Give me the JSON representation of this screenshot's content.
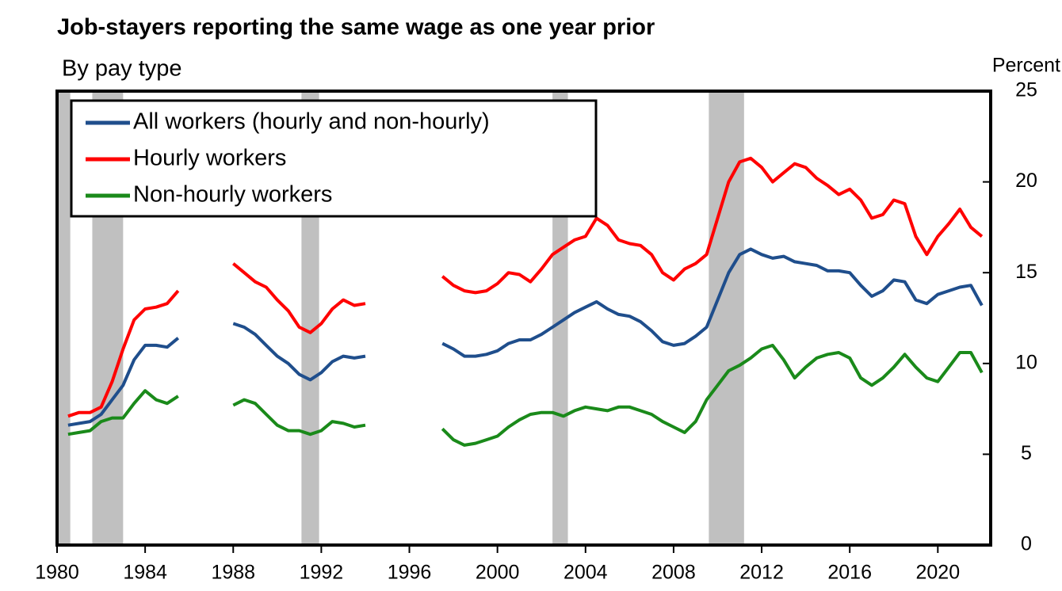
{
  "chart_data": {
    "type": "line",
    "title": "Job-stayers reporting the same wage as one year prior",
    "subtitle": "By pay type",
    "y_axis_label": "Percent",
    "xlim": [
      1980,
      2022.4
    ],
    "xticks": [
      1980,
      1984,
      1988,
      1992,
      1996,
      2000,
      2004,
      2008,
      2012,
      2016,
      2020
    ],
    "ylim": [
      0,
      25
    ],
    "yticks": [
      0,
      5,
      10,
      15,
      20,
      25
    ],
    "legend": "top-left",
    "shaded_periods": [
      [
        1980.0,
        1980.6
      ],
      [
        1981.6,
        1983.0
      ],
      [
        1991.1,
        1991.9
      ],
      [
        2002.5,
        2003.2
      ],
      [
        2009.6,
        2011.2
      ]
    ],
    "shade_color": "#c0c0c0",
    "x": [
      1980.5,
      1981,
      1981.5,
      1982,
      1982.5,
      1983,
      1983.5,
      1984,
      1984.5,
      1985,
      1985.5,
      1986.75,
      1988,
      1988.5,
      1989,
      1989.5,
      1990,
      1990.5,
      1991,
      1991.5,
      1992,
      1992.5,
      1993,
      1993.5,
      1994,
      1995.75,
      1997.5,
      1998,
      1998.5,
      1999,
      1999.5,
      2000,
      2000.5,
      2001,
      2001.5,
      2002,
      2002.5,
      2003,
      2003.5,
      2004,
      2004.5,
      2005,
      2005.5,
      2006,
      2006.5,
      2007,
      2007.5,
      2008,
      2008.5,
      2009,
      2009.5,
      2010,
      2010.5,
      2011,
      2011.5,
      2012,
      2012.5,
      2013,
      2013.5,
      2014,
      2014.5,
      2015,
      2015.5,
      2016,
      2016.5,
      2017,
      2017.5,
      2018,
      2018.5,
      2019,
      2019.5,
      2020,
      2020.5,
      2021,
      2021.5,
      2022
    ],
    "series": [
      {
        "name": "All workers (hourly and non-hourly)",
        "color": "#1f4e8c",
        "values": [
          6.6,
          6.7,
          6.8,
          7.2,
          8.0,
          8.8,
          10.2,
          11.0,
          11.0,
          10.9,
          11.4,
          null,
          12.2,
          12.0,
          11.6,
          11.0,
          10.4,
          10.0,
          9.4,
          9.1,
          9.5,
          10.1,
          10.4,
          10.3,
          10.4,
          null,
          11.1,
          10.8,
          10.4,
          10.4,
          10.5,
          10.7,
          11.1,
          11.3,
          11.3,
          11.6,
          12.0,
          12.4,
          12.8,
          13.1,
          13.4,
          13.0,
          12.7,
          12.6,
          12.3,
          11.8,
          11.2,
          11.0,
          11.1,
          11.5,
          12.0,
          13.5,
          15.0,
          16.0,
          16.3,
          16.0,
          15.8,
          15.9,
          15.6,
          15.5,
          15.4,
          15.1,
          15.1,
          15.0,
          14.3,
          13.7,
          14.0,
          14.6,
          14.5,
          13.5,
          13.3,
          13.8,
          14.0,
          14.2,
          14.3,
          13.2
        ]
      },
      {
        "name": "Hourly workers",
        "color": "#ff0000",
        "values": [
          7.1,
          7.3,
          7.3,
          7.6,
          9.0,
          10.8,
          12.4,
          13.0,
          13.1,
          13.3,
          14.0,
          null,
          15.5,
          15.0,
          14.5,
          14.2,
          13.5,
          12.9,
          12.0,
          11.7,
          12.2,
          13.0,
          13.5,
          13.2,
          13.3,
          null,
          14.8,
          14.3,
          14.0,
          13.9,
          14.0,
          14.4,
          15.0,
          14.9,
          14.5,
          15.2,
          16.0,
          16.4,
          16.8,
          17.0,
          18.0,
          17.6,
          16.8,
          16.6,
          16.5,
          16.0,
          15.0,
          14.6,
          15.2,
          15.5,
          16.0,
          18.0,
          20.0,
          21.1,
          21.3,
          20.8,
          20.0,
          20.5,
          21.0,
          20.8,
          20.2,
          19.8,
          19.3,
          19.6,
          19.0,
          18.0,
          18.2,
          19.0,
          18.8,
          17.0,
          16.0,
          17.0,
          17.7,
          18.5,
          17.5,
          17.0
        ]
      },
      {
        "name": "Non-hourly workers",
        "color": "#1a8a1a",
        "values": [
          6.1,
          6.2,
          6.3,
          6.8,
          7.0,
          7.0,
          7.8,
          8.5,
          8.0,
          7.8,
          8.2,
          null,
          7.7,
          8.0,
          7.8,
          7.2,
          6.6,
          6.3,
          6.3,
          6.1,
          6.3,
          6.8,
          6.7,
          6.5,
          6.6,
          null,
          6.4,
          5.8,
          5.5,
          5.6,
          5.8,
          6.0,
          6.5,
          6.9,
          7.2,
          7.3,
          7.3,
          7.1,
          7.4,
          7.6,
          7.5,
          7.4,
          7.6,
          7.6,
          7.4,
          7.2,
          6.8,
          6.5,
          6.2,
          6.8,
          8.0,
          8.8,
          9.6,
          9.9,
          10.3,
          10.8,
          11.0,
          10.2,
          9.2,
          9.8,
          10.3,
          10.5,
          10.6,
          10.3,
          9.2,
          8.8,
          9.2,
          9.8,
          10.5,
          9.8,
          9.2,
          9.0,
          9.8,
          10.6,
          10.6,
          9.5
        ]
      }
    ]
  }
}
